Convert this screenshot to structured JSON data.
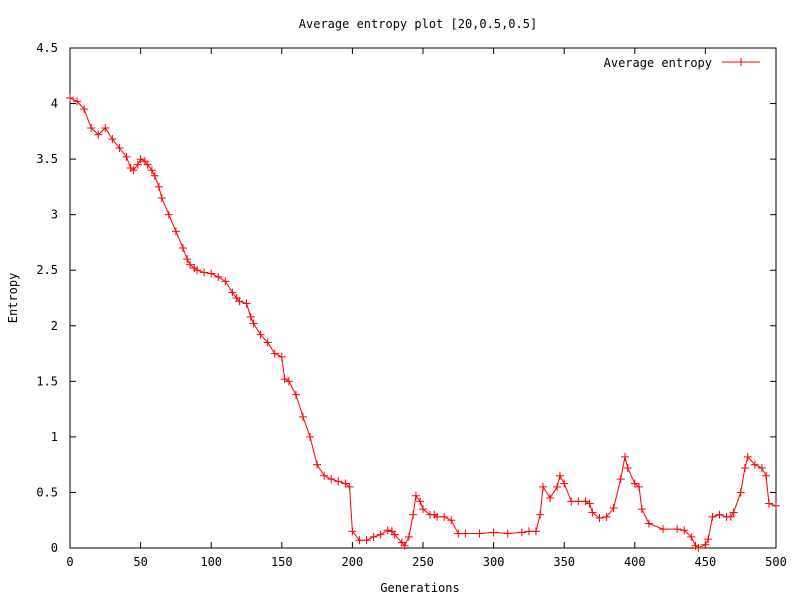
{
  "chart_data": {
    "type": "line",
    "title": "Average entropy plot [20,0.5,0.5]",
    "xlabel": "Generations",
    "ylabel": "Entropy",
    "xlim": [
      0,
      500
    ],
    "ylim": [
      0,
      4.5
    ],
    "xticks": [
      0,
      50,
      100,
      150,
      200,
      250,
      300,
      350,
      400,
      450,
      500
    ],
    "yticks": [
      0,
      0.5,
      1,
      1.5,
      2,
      2.5,
      3,
      3.5,
      4,
      4.5
    ],
    "xtick_labels": [
      "0",
      "50",
      "100",
      "150",
      "200",
      "250",
      "300",
      "350",
      "400",
      "450",
      "500"
    ],
    "ytick_labels": [
      "0",
      "0.5",
      "1",
      "1.5",
      "2",
      "2.5",
      "3",
      "3.5",
      "4",
      "4.5"
    ],
    "grid": false,
    "legend_position": "top-right",
    "series": [
      {
        "name": "Average entropy",
        "color": "#ff0000",
        "marker": "plus",
        "x": [
          0,
          5,
          10,
          15,
          20,
          25,
          30,
          35,
          40,
          43,
          45,
          48,
          50,
          53,
          55,
          58,
          60,
          63,
          65,
          70,
          75,
          80,
          83,
          85,
          88,
          90,
          95,
          100,
          105,
          110,
          115,
          118,
          120,
          125,
          128,
          130,
          135,
          140,
          145,
          150,
          152,
          155,
          160,
          165,
          170,
          175,
          180,
          185,
          190,
          195,
          198,
          200,
          205,
          210,
          215,
          220,
          225,
          228,
          230,
          235,
          237,
          240,
          243,
          245,
          248,
          250,
          255,
          258,
          260,
          265,
          270,
          275,
          280,
          290,
          300,
          310,
          320,
          325,
          330,
          333,
          335,
          340,
          345,
          347,
          350,
          355,
          360,
          365,
          368,
          370,
          375,
          380,
          385,
          390,
          393,
          395,
          400,
          403,
          405,
          410,
          420,
          430,
          435,
          440,
          443,
          445,
          450,
          452,
          455,
          460,
          465,
          468,
          470,
          475,
          478,
          480,
          485,
          490,
          493,
          495,
          500
        ],
        "y": [
          4.05,
          4.02,
          3.95,
          3.78,
          3.72,
          3.78,
          3.68,
          3.6,
          3.52,
          3.42,
          3.4,
          3.45,
          3.5,
          3.48,
          3.45,
          3.4,
          3.35,
          3.25,
          3.15,
          3.0,
          2.85,
          2.7,
          2.6,
          2.55,
          2.52,
          2.5,
          2.48,
          2.47,
          2.44,
          2.4,
          2.3,
          2.25,
          2.22,
          2.2,
          2.08,
          2.02,
          1.92,
          1.85,
          1.75,
          1.72,
          1.52,
          1.5,
          1.38,
          1.18,
          1.0,
          0.75,
          0.65,
          0.62,
          0.6,
          0.58,
          0.55,
          0.15,
          0.07,
          0.07,
          0.1,
          0.12,
          0.16,
          0.15,
          0.12,
          0.05,
          0.02,
          0.1,
          0.3,
          0.47,
          0.42,
          0.35,
          0.3,
          0.3,
          0.28,
          0.28,
          0.25,
          0.13,
          0.13,
          0.13,
          0.14,
          0.13,
          0.14,
          0.15,
          0.15,
          0.3,
          0.55,
          0.45,
          0.55,
          0.65,
          0.58,
          0.42,
          0.42,
          0.42,
          0.4,
          0.32,
          0.27,
          0.28,
          0.36,
          0.62,
          0.82,
          0.72,
          0.58,
          0.55,
          0.35,
          0.22,
          0.17,
          0.17,
          0.16,
          0.1,
          0.02,
          0.0,
          0.03,
          0.08,
          0.28,
          0.3,
          0.28,
          0.28,
          0.32,
          0.5,
          0.72,
          0.82,
          0.75,
          0.72,
          0.65,
          0.4,
          0.38
        ]
      }
    ]
  }
}
